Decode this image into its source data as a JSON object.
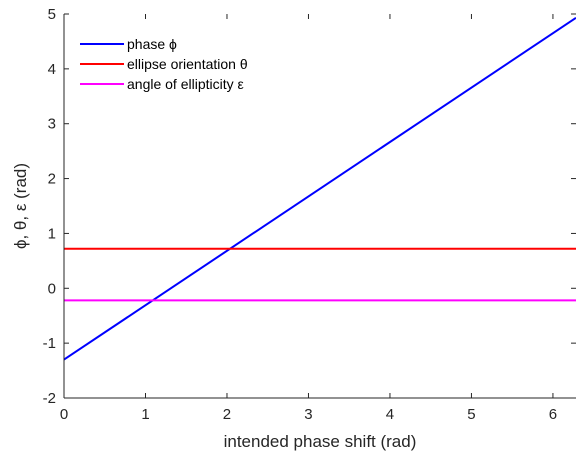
{
  "chart_data": {
    "type": "line",
    "xlabel": "intended phase shift (rad)",
    "ylabel": "ϕ, θ, ε (rad)",
    "xlim": [
      0,
      6.283
    ],
    "ylim": [
      -2,
      5
    ],
    "x_ticks": [
      0,
      1,
      2,
      3,
      4,
      5,
      6
    ],
    "y_ticks": [
      -2,
      -1,
      0,
      1,
      2,
      3,
      4,
      5
    ],
    "grid": false,
    "legend_position": "top-left",
    "series": [
      {
        "name": "phase ϕ",
        "color": "#0000ff",
        "x": [
          0,
          6.283
        ],
        "y": [
          -1.3,
          4.93
        ]
      },
      {
        "name": "ellipse orientation θ",
        "color": "#ff0000",
        "x": [
          0,
          6.283
        ],
        "y": [
          0.72,
          0.72
        ]
      },
      {
        "name": "angle of ellipticity ε",
        "color": "#ff00ff",
        "x": [
          0,
          6.283
        ],
        "y": [
          -0.22,
          -0.22
        ]
      }
    ]
  }
}
